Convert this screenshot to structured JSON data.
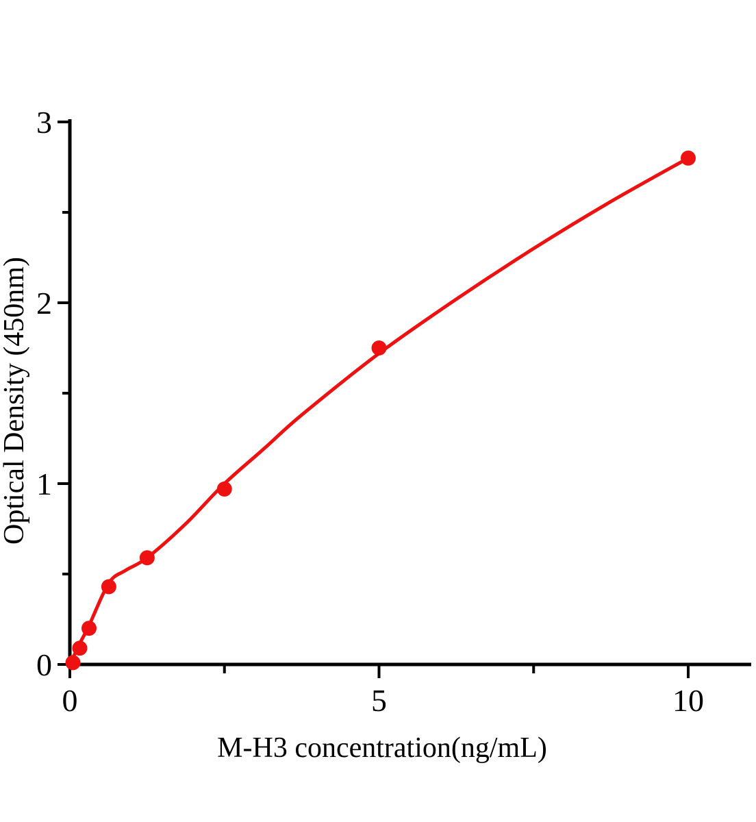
{
  "figure": {
    "background": "#ffffff"
  },
  "chart_data": {
    "type": "scatter",
    "subtype": "standard-curve-with-fit-line",
    "title": "",
    "xlabel": "M-H3 concentration(ng/mL)",
    "ylabel": "Optical Density (450nm)",
    "xlim": [
      0,
      11
    ],
    "ylim": [
      0,
      3
    ],
    "grid": false,
    "legend": false,
    "x_major_ticks": [
      0,
      5,
      10
    ],
    "x_tick_labels": [
      "0",
      "5",
      "10"
    ],
    "x_minor_ticks": [
      2.5,
      7.5
    ],
    "y_major_ticks": [
      0,
      1,
      2,
      3
    ],
    "y_tick_labels": [
      "0",
      "1",
      "2",
      "3"
    ],
    "y_minor_ticks": [
      0.5,
      1.5,
      2.5
    ],
    "points": [
      {
        "x": 0.05,
        "y": 0.01
      },
      {
        "x": 0.16,
        "y": 0.09
      },
      {
        "x": 0.31,
        "y": 0.2
      },
      {
        "x": 0.63,
        "y": 0.43
      },
      {
        "x": 1.25,
        "y": 0.59
      },
      {
        "x": 2.5,
        "y": 0.97
      },
      {
        "x": 5,
        "y": 1.75
      },
      {
        "x": 10,
        "y": 2.8
      }
    ],
    "fit_curve": [
      [
        0,
        0
      ],
      [
        0.16,
        0.115
      ],
      [
        0.31,
        0.215
      ],
      [
        0.63,
        0.45
      ],
      [
        0.9,
        0.52
      ],
      [
        1.25,
        0.59
      ],
      [
        1.88,
        0.78
      ],
      [
        2.5,
        1.0
      ],
      [
        3.13,
        1.19
      ],
      [
        3.75,
        1.38
      ],
      [
        5,
        1.72
      ],
      [
        6.25,
        2.02
      ],
      [
        7.5,
        2.3
      ],
      [
        8.75,
        2.56
      ],
      [
        10,
        2.8
      ]
    ],
    "marker_color": "#ee1111",
    "line_color": "#ee1111",
    "axis_color": "#000000"
  }
}
